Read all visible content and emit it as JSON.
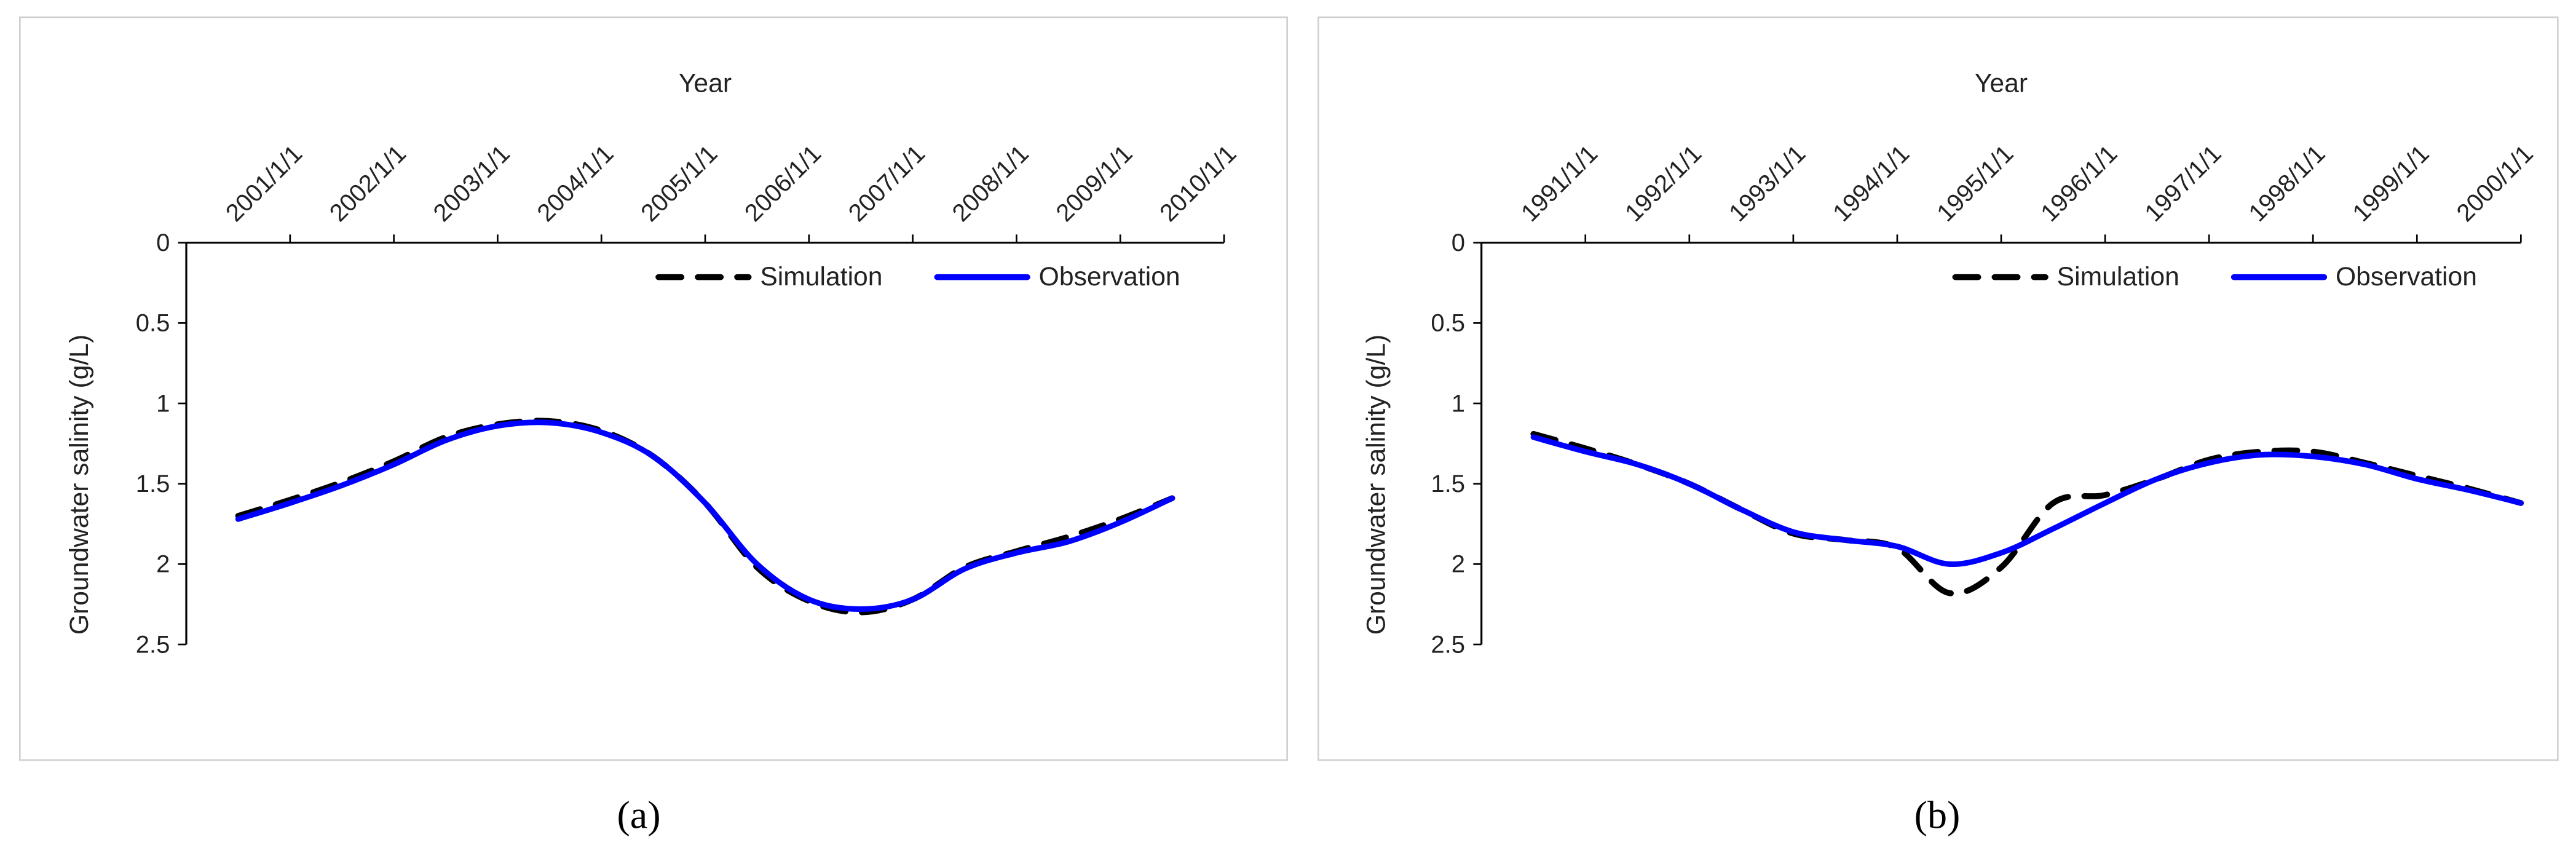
{
  "chart_data": [
    {
      "type": "line",
      "panel_label": "(a)",
      "x_label": "Year",
      "y_label": "Groundwater salinity (g/L)",
      "x": [
        2000.5,
        2001.0,
        2001.5,
        2002.0,
        2002.5,
        2003.0,
        2003.5,
        2004.0,
        2004.5,
        2005.0,
        2005.5,
        2006.0,
        2006.5,
        2007.0,
        2007.5,
        2008.0,
        2008.5,
        2009.0,
        2009.5
      ],
      "series": [
        {
          "name": "Simulation",
          "color": "#000000",
          "linestyle": "dashed",
          "values": [
            1.7,
            1.6,
            1.49,
            1.36,
            1.21,
            1.13,
            1.11,
            1.17,
            1.33,
            1.62,
            2.02,
            2.23,
            2.3,
            2.22,
            2.02,
            1.92,
            1.83,
            1.72,
            1.59
          ]
        },
        {
          "name": "Observation",
          "color": "#0000ff",
          "linestyle": "solid",
          "values": [
            1.72,
            1.62,
            1.51,
            1.38,
            1.23,
            1.14,
            1.12,
            1.18,
            1.33,
            1.62,
            2.0,
            2.22,
            2.28,
            2.22,
            2.03,
            1.93,
            1.86,
            1.74,
            1.59
          ]
        }
      ],
      "xlim": [
        2000,
        2010
      ],
      "xticks": [
        {
          "value": 2001,
          "label": "2001/1/1"
        },
        {
          "value": 2002,
          "label": "2002/1/1"
        },
        {
          "value": 2003,
          "label": "2003/1/1"
        },
        {
          "value": 2004,
          "label": "2004/1/1"
        },
        {
          "value": 2005,
          "label": "2005/1/1"
        },
        {
          "value": 2006,
          "label": "2006/1/1"
        },
        {
          "value": 2007,
          "label": "2007/1/1"
        },
        {
          "value": 2008,
          "label": "2008/1/1"
        },
        {
          "value": 2009,
          "label": "2009/1/1"
        },
        {
          "value": 2010,
          "label": "2010/1/1"
        }
      ],
      "ylim": [
        0,
        2.5
      ],
      "y_inverted": true,
      "yticks": [
        0,
        0.5,
        1,
        1.5,
        2,
        2.5
      ],
      "x_axis_position": "top",
      "grid": false,
      "legend": "top-right"
    },
    {
      "type": "line",
      "panel_label": "(b)",
      "x_label": "Year",
      "y_label": "Groundwater salinity (g/L)",
      "x": [
        1990.5,
        1991.0,
        1991.5,
        1992.0,
        1992.5,
        1993.0,
        1993.5,
        1994.0,
        1994.5,
        1995.0,
        1995.5,
        1996.0,
        1996.5,
        1997.0,
        1997.5,
        1998.0,
        1998.5,
        1999.0,
        1999.5,
        2000.0
      ],
      "series": [
        {
          "name": "Simulation",
          "color": "#000000",
          "linestyle": "dashed",
          "values": [
            1.19,
            1.28,
            1.38,
            1.5,
            1.66,
            1.81,
            1.85,
            1.9,
            2.18,
            2.02,
            1.62,
            1.57,
            1.47,
            1.35,
            1.3,
            1.3,
            1.37,
            1.45,
            1.53,
            1.62
          ]
        },
        {
          "name": "Observation",
          "color": "#0000ff",
          "linestyle": "solid",
          "values": [
            1.21,
            1.3,
            1.38,
            1.5,
            1.66,
            1.8,
            1.85,
            1.89,
            2.0,
            1.93,
            1.78,
            1.62,
            1.47,
            1.37,
            1.32,
            1.33,
            1.38,
            1.47,
            1.54,
            1.62
          ]
        }
      ],
      "xlim": [
        1990,
        2000
      ],
      "xticks": [
        {
          "value": 1991,
          "label": "1991/1/1"
        },
        {
          "value": 1992,
          "label": "1992/1/1"
        },
        {
          "value": 1993,
          "label": "1993/1/1"
        },
        {
          "value": 1994,
          "label": "1994/1/1"
        },
        {
          "value": 1995,
          "label": "1995/1/1"
        },
        {
          "value": 1996,
          "label": "1996/1/1"
        },
        {
          "value": 1997,
          "label": "1997/1/1"
        },
        {
          "value": 1998,
          "label": "1998/1/1"
        },
        {
          "value": 1999,
          "label": "1999/1/1"
        },
        {
          "value": 2000,
          "label": "2000/1/1"
        }
      ],
      "ylim": [
        0,
        2.5
      ],
      "y_inverted": true,
      "yticks": [
        0,
        0.5,
        1,
        1.5,
        2,
        2.5
      ],
      "x_axis_position": "top",
      "grid": false,
      "legend": "top-right"
    }
  ]
}
